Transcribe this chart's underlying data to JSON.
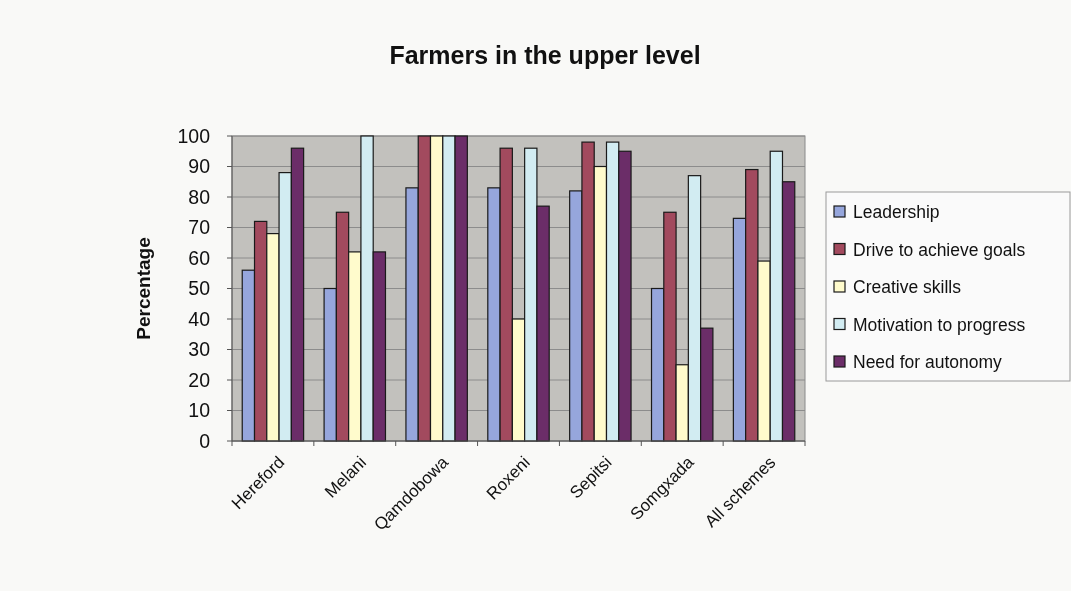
{
  "chart_data": {
    "type": "bar",
    "title": "Farmers in the upper level",
    "ylabel": "Percentage",
    "categories": [
      "Hereford",
      "Melani",
      "Qamdobowa",
      "Roxeni",
      "Sepitsi",
      "Somgxada",
      "All schemes"
    ],
    "series": [
      {
        "name": "Leadership",
        "color": "#96a6dc",
        "values": [
          56,
          50,
          83,
          83,
          82,
          50,
          73
        ]
      },
      {
        "name": "Drive to achieve goals",
        "color": "#a24a5e",
        "values": [
          72,
          75,
          100,
          96,
          98,
          75,
          89
        ]
      },
      {
        "name": "Creative skills",
        "color": "#fffbcc",
        "values": [
          68,
          62,
          100,
          40,
          90,
          25,
          59
        ]
      },
      {
        "name": "Motivation to progress",
        "color": "#d2ecf2",
        "values": [
          88,
          100,
          100,
          96,
          98,
          87,
          95
        ]
      },
      {
        "name": "Need for autonomy",
        "color": "#6b2d68",
        "values": [
          96,
          62,
          100,
          77,
          95,
          37,
          85
        ]
      }
    ],
    "ylim": [
      0,
      100
    ],
    "yticks": [
      0,
      10,
      20,
      30,
      40,
      50,
      60,
      70,
      80,
      90,
      100
    ],
    "grid": "y",
    "legend": "right"
  }
}
